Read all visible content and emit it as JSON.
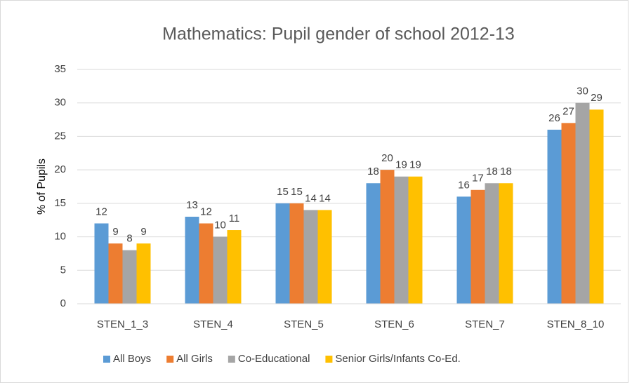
{
  "chart_data": {
    "type": "bar",
    "title": "Mathematics: Pupil gender of school 2012-13",
    "y_label": "% of Pupils",
    "categories": [
      "STEN_1_3",
      "STEN_4",
      "STEN_5",
      "STEN_6",
      "STEN_7",
      "STEN_8_10"
    ],
    "series": [
      {
        "name": "All Boys",
        "color": "#5b9bd5",
        "values": [
          12,
          13,
          15,
          18,
          16,
          26
        ]
      },
      {
        "name": "All Girls",
        "color": "#ed7d31",
        "values": [
          9,
          12,
          15,
          20,
          17,
          27
        ]
      },
      {
        "name": "Co-Educational",
        "color": "#a5a5a5",
        "values": [
          8,
          10,
          14,
          19,
          18,
          30
        ]
      },
      {
        "name": "Senior Girls/Infants Co-Ed.",
        "color": "#ffc000",
        "values": [
          9,
          11,
          14,
          19,
          18,
          29
        ]
      }
    ],
    "ylim": [
      0,
      35
    ],
    "yticks": [
      0,
      5,
      10,
      15,
      20,
      25,
      30,
      35
    ],
    "grid": true,
    "legend": "bottom"
  }
}
